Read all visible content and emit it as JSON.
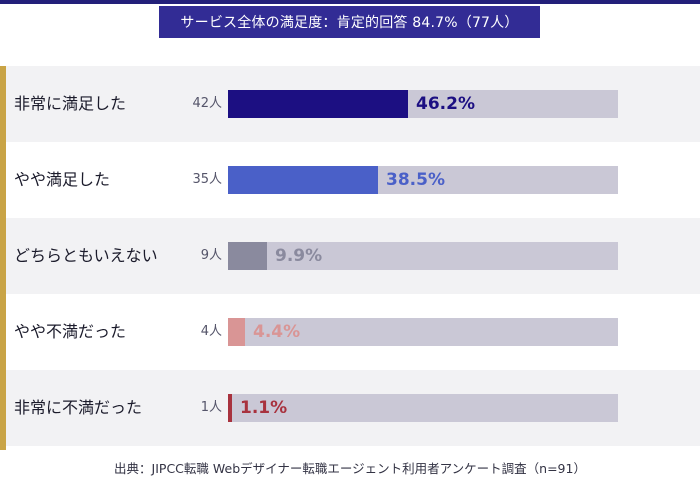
{
  "title": "サービス全体の満足度：肯定的回答 84.7%（77人）",
  "source": "出典：JIPCC転職 Webデザイナー転職エージェント利用者アンケート調査（n=91）",
  "colors": {
    "title_bg": "#322c95",
    "accent": "#c9a446",
    "track": "#cac8d6",
    "band": "#f2f2f4"
  },
  "chart_data": {
    "type": "bar",
    "orientation": "horizontal",
    "title": "サービス全体の満足度：肯定的回答 84.7%（77人）",
    "xlim": [
      0,
      100
    ],
    "categories": [
      "非常に満足した",
      "やや満足した",
      "どちらともいえない",
      "やや不満だった",
      "非常に不満だった"
    ],
    "counts": [
      "42人",
      "35人",
      "9人",
      "4人",
      "1人"
    ],
    "values": [
      46.2,
      38.5,
      9.9,
      4.4,
      1.1
    ],
    "value_labels": [
      "46.2%",
      "38.5%",
      "9.9%",
      "4.4%",
      "1.1%"
    ],
    "bar_colors": [
      "#1c0f82",
      "#4a60c8",
      "#8a8a9e",
      "#d99595",
      "#a8323e"
    ],
    "label_colors": [
      "#1c0f82",
      "#4a60c8",
      "#8a8a9e",
      "#d99595",
      "#a8323e"
    ],
    "grid": false,
    "legend": "none"
  }
}
